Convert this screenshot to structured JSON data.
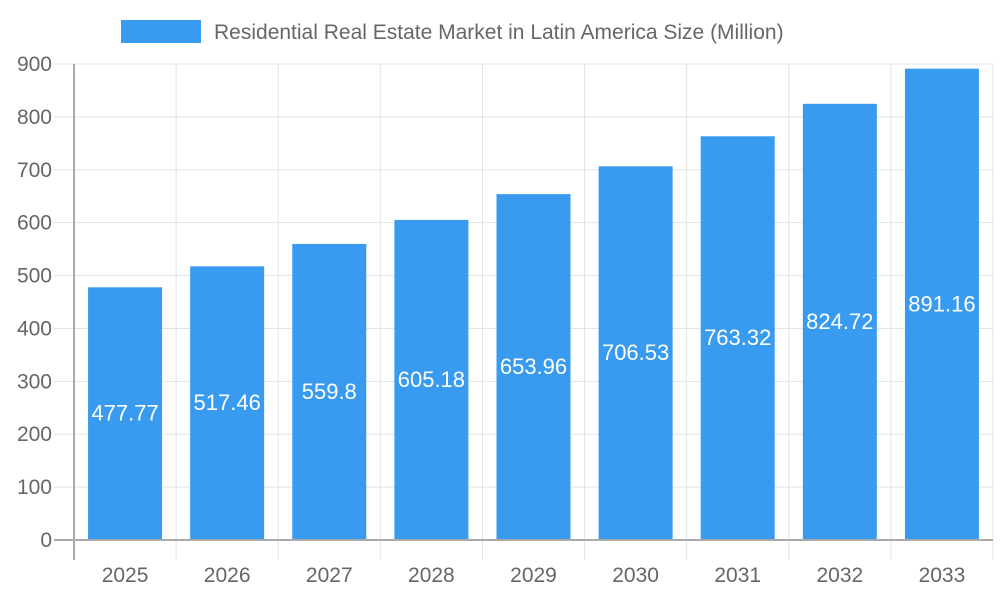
{
  "chart_data": {
    "type": "bar",
    "title": "",
    "xlabel": "",
    "ylabel": "",
    "categories": [
      "2025",
      "2026",
      "2027",
      "2028",
      "2029",
      "2030",
      "2031",
      "2032",
      "2033"
    ],
    "series": [
      {
        "name": "Residential Real Estate Market in Latin America Size (Million)",
        "values": [
          477.77,
          517.46,
          559.8,
          605.18,
          653.96,
          706.53,
          763.32,
          824.72,
          891.16
        ],
        "color": "#389bf0"
      }
    ],
    "ylim": [
      0,
      900
    ],
    "yticks": [
      0,
      100,
      200,
      300,
      400,
      500,
      600,
      700,
      800,
      900
    ],
    "grid": true,
    "legend_position": "top",
    "data_labels": true
  }
}
